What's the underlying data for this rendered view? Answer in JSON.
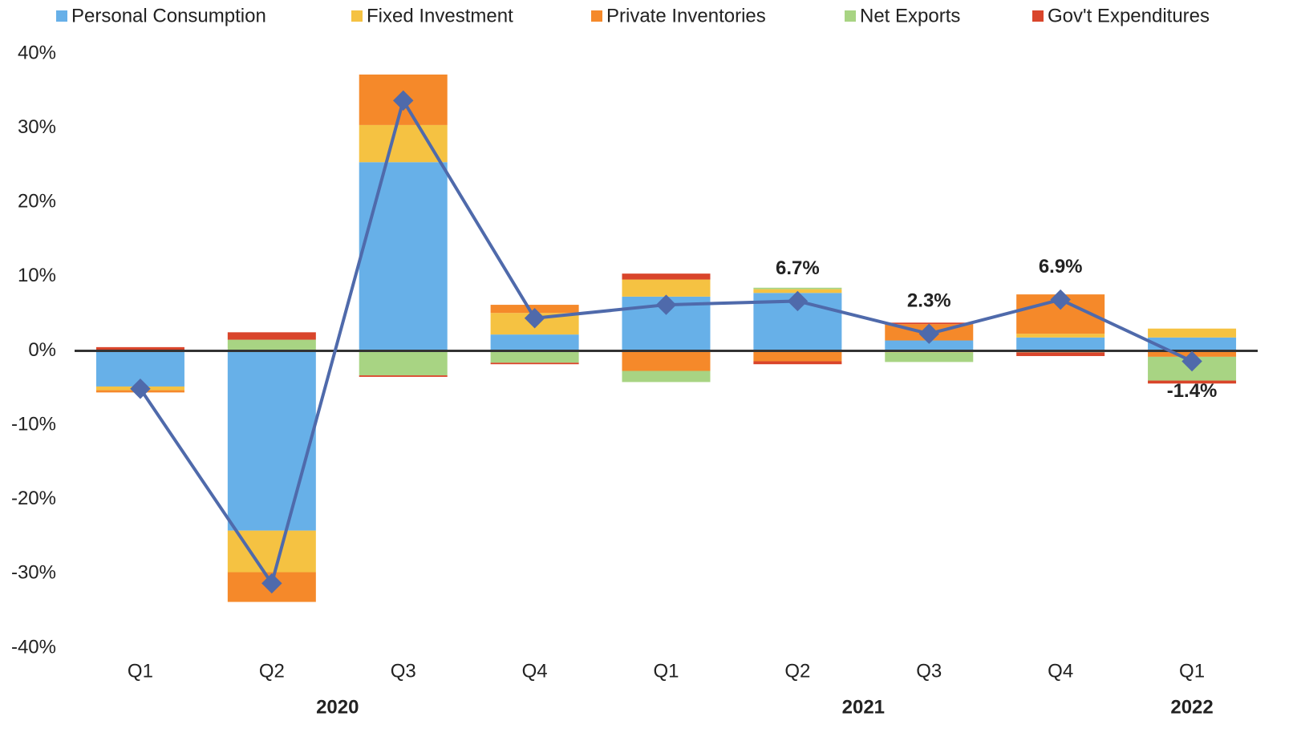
{
  "chart_data": {
    "type": "stacked_bar_line",
    "categories": [
      "Q1",
      "Q2",
      "Q3",
      "Q4",
      "Q1",
      "Q2",
      "Q3",
      "Q4",
      "Q1"
    ],
    "years": [
      "2020",
      null,
      null,
      null,
      "2021",
      null,
      null,
      null,
      "2022"
    ],
    "series": [
      {
        "name": "Personal Consumption",
        "color": "#67b0e8",
        "values": [
          -4.8,
          -24.2,
          25.4,
          2.2,
          7.3,
          7.8,
          1.4,
          1.8,
          1.8
        ]
      },
      {
        "name": "Fixed Investment",
        "color": "#f5c242",
        "values": [
          -0.5,
          -5.6,
          5.0,
          2.9,
          2.3,
          0.5,
          -0.2,
          0.5,
          1.2
        ]
      },
      {
        "name": "Private Inventories",
        "color": "#f5892a",
        "values": [
          -0.3,
          -4.0,
          6.8,
          1.1,
          -2.7,
          -1.4,
          2.2,
          5.3,
          -0.8
        ]
      },
      {
        "name": "Net Exports",
        "color": "#a8d483",
        "values": [
          0.0,
          1.5,
          -3.3,
          -1.6,
          -1.5,
          0.2,
          -1.3,
          -0.2,
          -3.2
        ]
      },
      {
        "name": "Gov't Expenditures",
        "color": "#d9452b",
        "values": [
          0.5,
          1.0,
          -0.2,
          -0.2,
          0.8,
          -0.4,
          0.2,
          -0.5,
          -0.4
        ]
      }
    ],
    "line": {
      "color": "#4f6aab",
      "values": [
        -5.1,
        -31.3,
        33.7,
        4.4,
        6.2,
        6.7,
        2.3,
        6.9,
        -1.4
      ],
      "value_labels": [
        null,
        null,
        null,
        null,
        null,
        "6.7%",
        "2.3%",
        "6.9%",
        "-1.4%"
      ]
    },
    "ylim": [
      -40,
      40
    ],
    "yticks": [
      {
        "value": -40,
        "label": "-40%"
      },
      {
        "value": -30,
        "label": "-30%"
      },
      {
        "value": -20,
        "label": "-20%"
      },
      {
        "value": -10,
        "label": "-10%"
      },
      {
        "value": 0,
        "label": "0%"
      },
      {
        "value": 10,
        "label": "10%"
      },
      {
        "value": 20,
        "label": "20%"
      },
      {
        "value": 30,
        "label": "30%"
      },
      {
        "value": 40,
        "label": "40%"
      }
    ],
    "legend": "top"
  }
}
